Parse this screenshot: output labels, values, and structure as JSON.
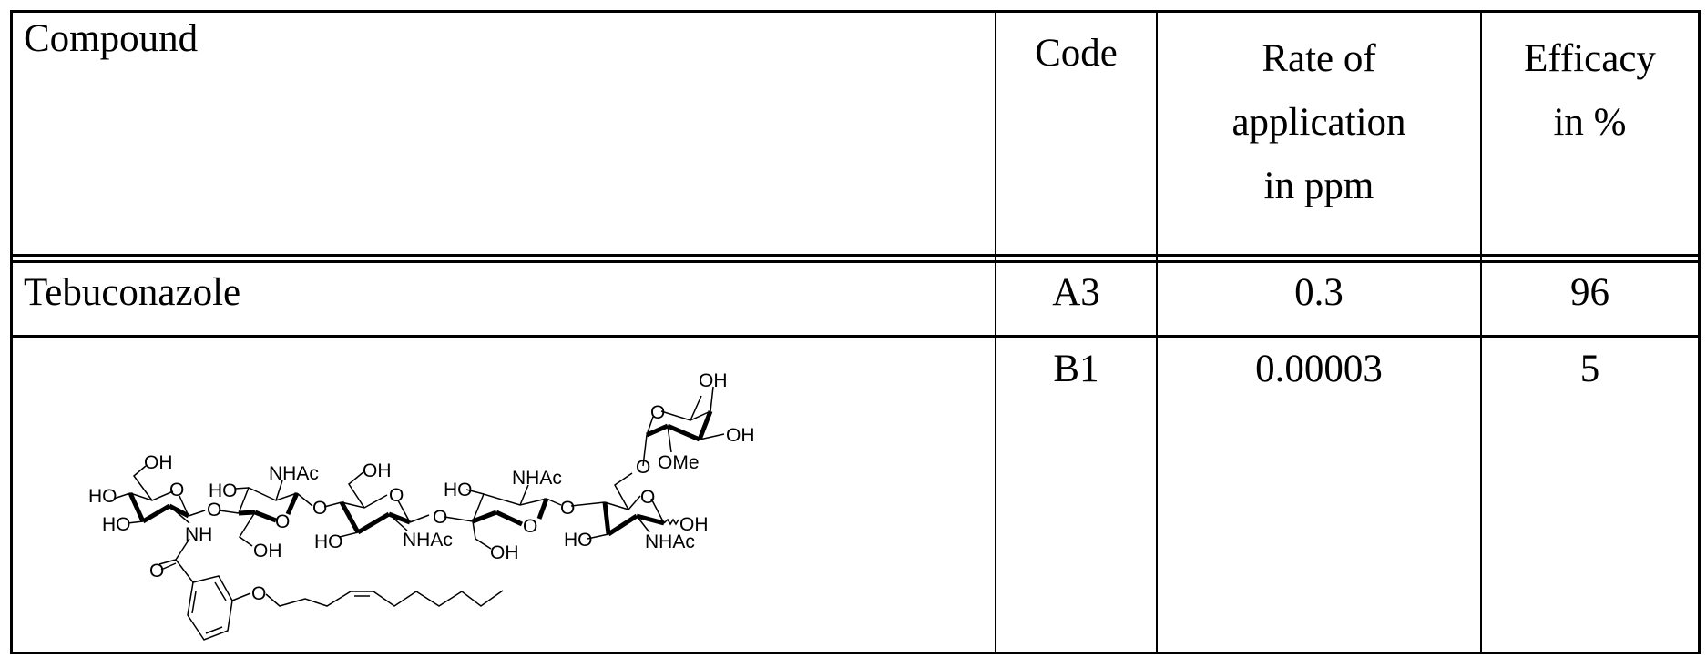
{
  "table": {
    "headers": {
      "compound": "Compound",
      "code": "Code",
      "rate": [
        "Rate of",
        "application",
        "in ppm"
      ],
      "efficacy": [
        "Efficacy",
        "in %"
      ]
    },
    "rows": [
      {
        "compound": "Tebuconazole",
        "code": "A3",
        "rate": "0.3",
        "efficacy": "96"
      },
      {
        "compound": "",
        "code": "B1",
        "rate": "0.00003",
        "efficacy": "5"
      }
    ]
  },
  "structure": {
    "labels": [
      "OH",
      "HO",
      "HO",
      "O",
      "NH",
      "O",
      "O",
      "HO",
      "NHAc",
      "O",
      "OH",
      "O",
      "OH",
      "O",
      "HO",
      "NHAc",
      "O",
      "HO",
      "NHAc",
      "O",
      "OH",
      "O",
      "O",
      "HO",
      "OH",
      "NHAc",
      "O",
      "OH",
      "OH",
      "OMe",
      "O"
    ]
  }
}
